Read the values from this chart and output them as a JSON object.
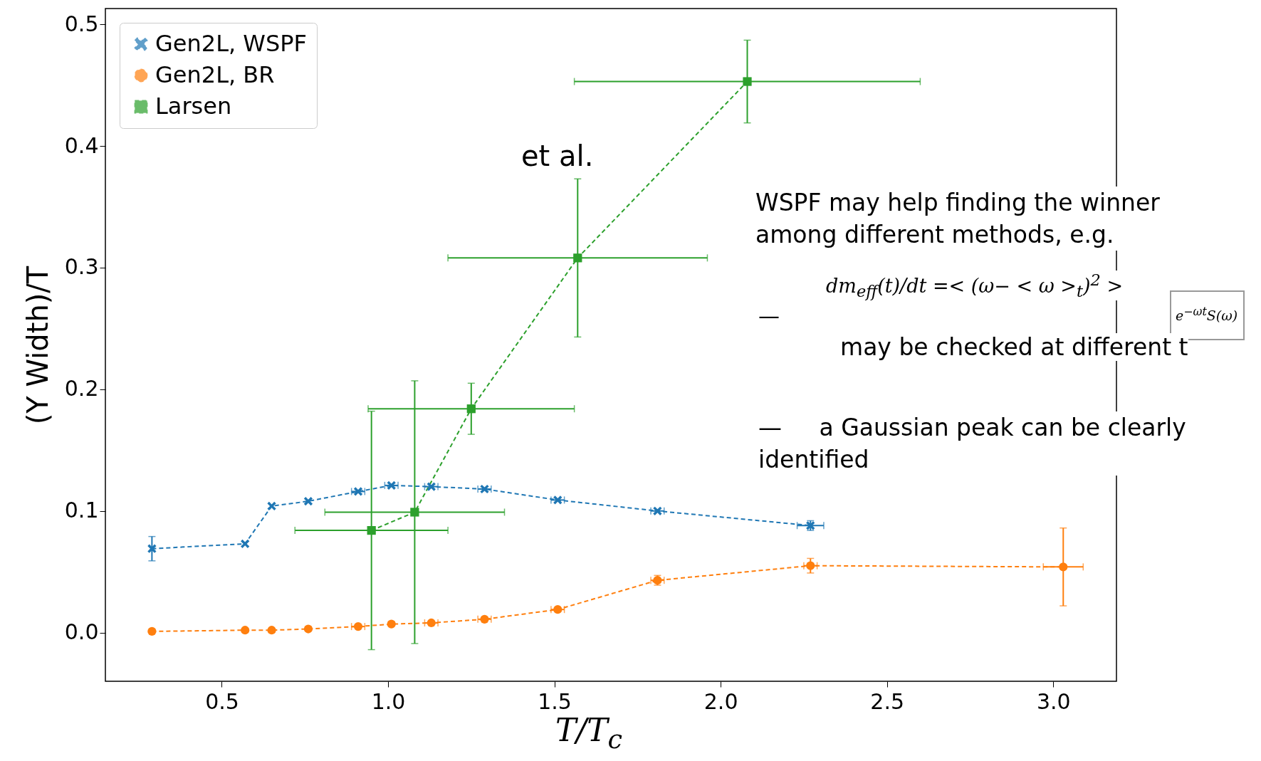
{
  "chart_data": {
    "type": "line",
    "xlabel": "T/T$_{c}$",
    "ylabel": "(Υ Width)/T",
    "xlim": [
      0.15,
      3.19
    ],
    "ylim": [
      -0.04,
      0.513
    ],
    "xticks": [
      0.5,
      {
        "value": 1,
        "label": "1.0"
      },
      1.5,
      {
        "value": 2,
        "label": "2.0"
      },
      2.5,
      {
        "value": 3,
        "label": "3.0"
      }
    ],
    "yticks": [
      {
        "value": 0,
        "label": "0.0"
      },
      0.1,
      0.2,
      0.3,
      0.4,
      0.5
    ],
    "legend": "top left",
    "marker": "circle",
    "line_style": "dashed",
    "grid": false,
    "series": [
      {
        "name": "Gen2L, WSPF",
        "color": "#1f77b4",
        "marker": "cross",
        "x": [
          0.29,
          0.57,
          0.65,
          0.76,
          0.91,
          1.01,
          1.13,
          1.29,
          1.51,
          1.81,
          2.27
        ],
        "values": [
          0.069,
          0.073,
          0.104,
          0.108,
          0.116,
          0.121,
          0.12,
          0.118,
          0.109,
          0.1,
          0.088
        ],
        "errors": [
          0.01,
          null,
          null,
          null,
          null,
          null,
          null,
          null,
          null,
          null,
          0.004
        ],
        "xerrors": [
          null,
          null,
          null,
          null,
          0.02,
          0.02,
          0.02,
          0.02,
          0.02,
          0.02,
          0.04
        ]
      },
      {
        "name": "Gen2L, BR",
        "color": "#ff7f0e",
        "x": [
          0.29,
          0.57,
          0.65,
          0.76,
          0.91,
          1.01,
          1.13,
          1.29,
          1.51,
          1.81,
          2.27,
          3.03
        ],
        "values": [
          0.001,
          0.002,
          0.002,
          0.003,
          0.005,
          0.007,
          0.008,
          0.011,
          0.019,
          0.043,
          0.055,
          0.054
        ],
        "errors": [
          null,
          null,
          null,
          null,
          null,
          null,
          null,
          null,
          null,
          0.004,
          0.006,
          0.032
        ],
        "xerrors": [
          null,
          null,
          null,
          null,
          0.02,
          null,
          0.02,
          0.02,
          0.02,
          0.02,
          0.02,
          0.06
        ]
      },
      {
        "name": "Larsen",
        "color": "#2ca02c",
        "marker": "square",
        "x": [
          0.95,
          1.08,
          1.25,
          1.57,
          2.08
        ],
        "values": [
          0.084,
          0.099,
          0.184,
          0.308,
          0.453
        ],
        "errors": [
          0.098,
          0.108,
          0.021,
          0.065,
          0.034
        ],
        "xerrors": [
          0.23,
          0.27,
          0.31,
          0.39,
          0.52
        ]
      }
    ],
    "annotations": [
      "et al.",
      "WSPF may help finding the winner among different methods, e.g.",
      "dm$_{eff}$(t)/dt =< (ω− < ω >$_{t}$)$^{2}$ >",
      "e$^{−ωt}$S(ω)",
      "—",
      "may be checked at different t",
      "—     a Gaussian peak can be clearly identified"
    ]
  }
}
